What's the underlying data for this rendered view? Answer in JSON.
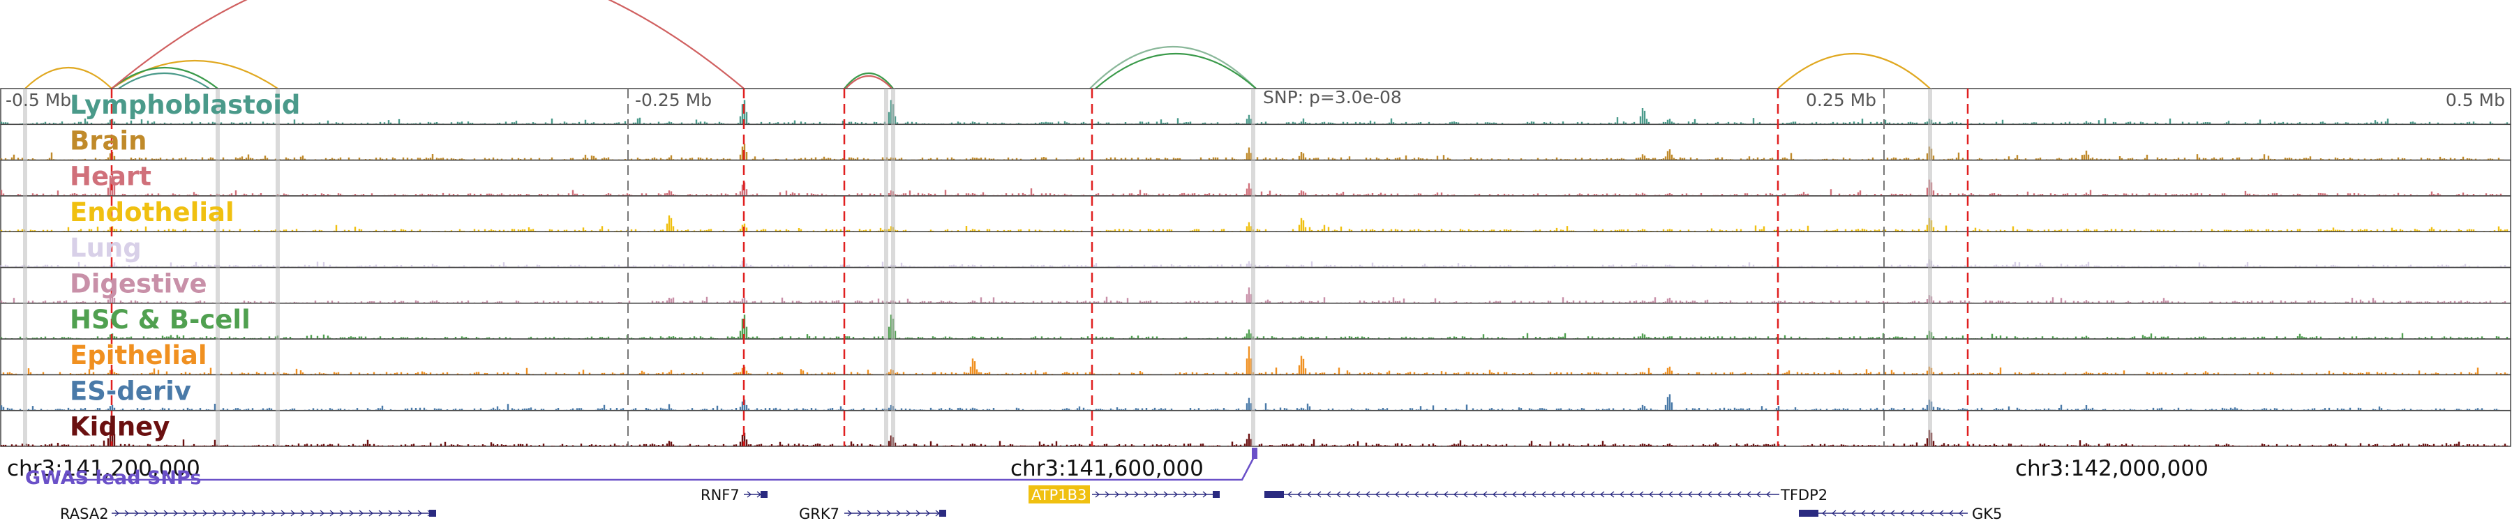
{
  "position_labels": [
    "-0.5 Mb",
    "-0.25 Mb",
    "0.25 Mb",
    "0.5 Mb"
  ],
  "snp_label": "SNP: p=3.0e-08",
  "tracks": [
    {
      "name": "Lymphoblastoid",
      "color": "#4a9a8a"
    },
    {
      "name": "Brain",
      "color": "#c08a2a"
    },
    {
      "name": "Heart",
      "color": "#d0707a"
    },
    {
      "name": "Endothelial",
      "color": "#f0c010"
    },
    {
      "name": "Lung",
      "color": "#d8d0e8"
    },
    {
      "name": "Digestive",
      "color": "#c890a8"
    },
    {
      "name": "HSC & B-cell",
      "color": "#50a050"
    },
    {
      "name": "Epithelial",
      "color": "#f09020"
    },
    {
      "name": "ES-deriv",
      "color": "#4a7aa8"
    },
    {
      "name": "Kidney",
      "color": "#6a1010"
    }
  ],
  "coordinates": [
    "chr3:141,200,000",
    "chr3:141,600,000",
    "chr3:142,000,000"
  ],
  "gwas_label": "GWAS lead SNPs",
  "genes": [
    {
      "name": "RASA2",
      "strand": "+"
    },
    {
      "name": "RNF7",
      "strand": "+"
    },
    {
      "name": "GRK7",
      "strand": "+"
    },
    {
      "name": "ATP1B3",
      "strand": "+",
      "highlight": "#f0c010"
    },
    {
      "name": "TFDP2",
      "strand": "-"
    },
    {
      "name": "GK5",
      "strand": "-"
    }
  ]
}
